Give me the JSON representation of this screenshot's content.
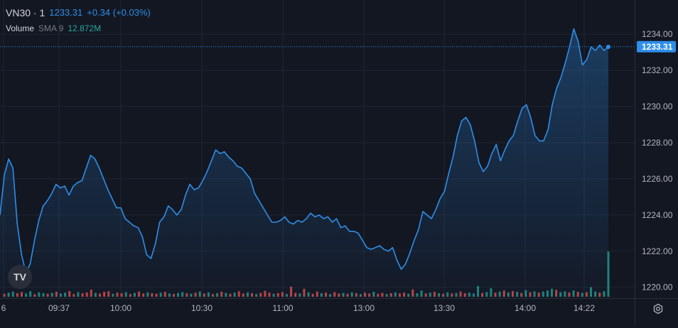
{
  "legend": {
    "symbol": "VN30 · 1",
    "last": "1233.31",
    "change": "+0.34 (+0.03%)",
    "volume_label": "Volume",
    "sma_label": "SMA 9",
    "volume_value": "12.872M"
  },
  "icons": {
    "logo": "tradingview-logo-icon",
    "settings": "gear-icon"
  },
  "logo_text": "TV",
  "colors": {
    "line": "#2e8ee8",
    "up": "#26a69a",
    "down": "#ef5350",
    "background": "#131722",
    "grid": "#1f2433"
  },
  "chart_data": {
    "type": "area",
    "price_label": "1233.31",
    "y_ticks": [
      "1234.00",
      "1232.00",
      "1230.00",
      "1228.00",
      "1226.00",
      "1224.00",
      "1222.00",
      "1220.00"
    ],
    "ylim": [
      1219.4,
      1235.5
    ],
    "x_tick_labels": [
      "6",
      "09:37",
      "10:00",
      "10:30",
      "11:00",
      "13:00",
      "13:30",
      "14:00",
      "14:22"
    ],
    "grid": true,
    "price_series": [
      1224.0,
      1226.2,
      1227.1,
      1226.6,
      1223.5,
      1221.8,
      1220.8,
      1221.3,
      1222.6,
      1223.7,
      1224.5,
      1224.8,
      1225.2,
      1225.7,
      1225.5,
      1225.6,
      1225.1,
      1225.6,
      1225.8,
      1225.9,
      1226.6,
      1227.3,
      1227.1,
      1226.6,
      1226.0,
      1225.4,
      1224.9,
      1224.4,
      1224.4,
      1223.8,
      1223.6,
      1223.4,
      1223.3,
      1222.8,
      1221.8,
      1221.6,
      1222.4,
      1223.6,
      1223.9,
      1224.5,
      1224.3,
      1224.0,
      1224.3,
      1225.1,
      1225.7,
      1225.4,
      1225.5,
      1225.9,
      1226.4,
      1227.0,
      1227.6,
      1227.4,
      1227.5,
      1227.2,
      1227.0,
      1226.7,
      1226.6,
      1226.3,
      1226.0,
      1225.2,
      1224.8,
      1224.4,
      1224.0,
      1223.6,
      1223.6,
      1223.7,
      1223.9,
      1223.6,
      1223.5,
      1223.7,
      1223.6,
      1223.8,
      1224.1,
      1223.9,
      1224.0,
      1223.8,
      1223.9,
      1223.6,
      1223.8,
      1223.3,
      1223.4,
      1223.1,
      1223.1,
      1223.0,
      1222.6,
      1222.2,
      1222.1,
      1222.2,
      1222.3,
      1222.1,
      1222.0,
      1222.2,
      1221.5,
      1221.0,
      1221.3,
      1221.9,
      1222.6,
      1223.2,
      1224.2,
      1224.0,
      1223.8,
      1224.3,
      1224.9,
      1225.3,
      1226.3,
      1227.2,
      1228.4,
      1229.2,
      1229.4,
      1229.0,
      1228.1,
      1226.9,
      1226.4,
      1226.7,
      1227.4,
      1227.9,
      1227.0,
      1227.6,
      1228.1,
      1228.4,
      1229.2,
      1229.9,
      1230.1,
      1229.4,
      1228.4,
      1228.1,
      1228.1,
      1228.7,
      1230.1,
      1231.0,
      1231.6,
      1232.4,
      1233.3,
      1234.3,
      1233.6,
      1232.3,
      1232.6,
      1233.3,
      1233.1,
      1233.4,
      1233.1,
      1233.3
    ],
    "volume_max": 7000000,
    "volume_series": [
      {
        "v": 1100000,
        "d": "down"
      },
      {
        "v": 1500000,
        "d": "up"
      },
      {
        "v": 1900000,
        "d": "up"
      },
      {
        "v": 1300000,
        "d": "down"
      },
      {
        "v": 1700000,
        "d": "down"
      },
      {
        "v": 1200000,
        "d": "up"
      },
      {
        "v": 2000000,
        "d": "up"
      },
      {
        "v": 900000,
        "d": "down"
      },
      {
        "v": 1600000,
        "d": "up"
      },
      {
        "v": 1300000,
        "d": "up"
      },
      {
        "v": 1100000,
        "d": "down"
      },
      {
        "v": 1400000,
        "d": "up"
      },
      {
        "v": 1800000,
        "d": "down"
      },
      {
        "v": 1200000,
        "d": "up"
      },
      {
        "v": 1500000,
        "d": "up"
      },
      {
        "v": 2100000,
        "d": "down"
      },
      {
        "v": 1000000,
        "d": "down"
      },
      {
        "v": 1700000,
        "d": "up"
      },
      {
        "v": 1300000,
        "d": "down"
      },
      {
        "v": 1600000,
        "d": "down"
      },
      {
        "v": 2600000,
        "d": "down"
      },
      {
        "v": 1400000,
        "d": "up"
      },
      {
        "v": 1200000,
        "d": "down"
      },
      {
        "v": 1800000,
        "d": "down"
      },
      {
        "v": 2000000,
        "d": "down"
      },
      {
        "v": 1100000,
        "d": "up"
      },
      {
        "v": 1500000,
        "d": "down"
      },
      {
        "v": 1300000,
        "d": "down"
      },
      {
        "v": 1700000,
        "d": "up"
      },
      {
        "v": 1000000,
        "d": "down"
      },
      {
        "v": 1400000,
        "d": "up"
      },
      {
        "v": 1900000,
        "d": "down"
      },
      {
        "v": 1200000,
        "d": "down"
      },
      {
        "v": 1600000,
        "d": "up"
      },
      {
        "v": 1300000,
        "d": "down"
      },
      {
        "v": 1100000,
        "d": "down"
      },
      {
        "v": 1500000,
        "d": "up"
      },
      {
        "v": 1800000,
        "d": "down"
      },
      {
        "v": 1200000,
        "d": "up"
      },
      {
        "v": 1000000,
        "d": "down"
      },
      {
        "v": 1400000,
        "d": "up"
      },
      {
        "v": 1700000,
        "d": "up"
      },
      {
        "v": 1300000,
        "d": "down"
      },
      {
        "v": 1100000,
        "d": "up"
      },
      {
        "v": 1500000,
        "d": "down"
      },
      {
        "v": 1900000,
        "d": "up"
      },
      {
        "v": 1200000,
        "d": "down"
      },
      {
        "v": 1600000,
        "d": "up"
      },
      {
        "v": 1000000,
        "d": "down"
      },
      {
        "v": 1300000,
        "d": "up"
      },
      {
        "v": 1800000,
        "d": "down"
      },
      {
        "v": 1400000,
        "d": "up"
      },
      {
        "v": 1100000,
        "d": "down"
      },
      {
        "v": 1500000,
        "d": "up"
      },
      {
        "v": 2000000,
        "d": "down"
      },
      {
        "v": 1200000,
        "d": "down"
      },
      {
        "v": 1600000,
        "d": "up"
      },
      {
        "v": 1300000,
        "d": "down"
      },
      {
        "v": 1000000,
        "d": "up"
      },
      {
        "v": 1400000,
        "d": "down"
      },
      {
        "v": 2200000,
        "d": "down"
      },
      {
        "v": 1500000,
        "d": "down"
      },
      {
        "v": 1100000,
        "d": "up"
      },
      {
        "v": 1300000,
        "d": "down"
      },
      {
        "v": 1700000,
        "d": "down"
      },
      {
        "v": 1000000,
        "d": "up"
      },
      {
        "v": 3700000,
        "d": "down"
      },
      {
        "v": 1400000,
        "d": "down"
      },
      {
        "v": 1200000,
        "d": "up"
      },
      {
        "v": 2900000,
        "d": "down"
      },
      {
        "v": 1600000,
        "d": "up"
      },
      {
        "v": 1100000,
        "d": "down"
      },
      {
        "v": 1900000,
        "d": "down"
      },
      {
        "v": 1300000,
        "d": "up"
      },
      {
        "v": 1500000,
        "d": "down"
      },
      {
        "v": 1000000,
        "d": "up"
      },
      {
        "v": 1700000,
        "d": "down"
      },
      {
        "v": 1200000,
        "d": "down"
      },
      {
        "v": 1400000,
        "d": "up"
      },
      {
        "v": 1100000,
        "d": "down"
      },
      {
        "v": 1600000,
        "d": "up"
      },
      {
        "v": 1300000,
        "d": "down"
      },
      {
        "v": 1000000,
        "d": "up"
      },
      {
        "v": 1500000,
        "d": "down"
      },
      {
        "v": 1200000,
        "d": "down"
      },
      {
        "v": 1800000,
        "d": "up"
      },
      {
        "v": 1100000,
        "d": "down"
      },
      {
        "v": 1400000,
        "d": "down"
      },
      {
        "v": 1000000,
        "d": "up"
      },
      {
        "v": 1300000,
        "d": "down"
      },
      {
        "v": 1600000,
        "d": "up"
      },
      {
        "v": 1200000,
        "d": "down"
      },
      {
        "v": 1500000,
        "d": "down"
      },
      {
        "v": 1100000,
        "d": "up"
      },
      {
        "v": 2700000,
        "d": "down"
      },
      {
        "v": 1300000,
        "d": "up"
      },
      {
        "v": 2300000,
        "d": "up"
      },
      {
        "v": 1200000,
        "d": "down"
      },
      {
        "v": 1500000,
        "d": "up"
      },
      {
        "v": 1800000,
        "d": "down"
      },
      {
        "v": 1300000,
        "d": "up"
      },
      {
        "v": 1100000,
        "d": "down"
      },
      {
        "v": 1600000,
        "d": "up"
      },
      {
        "v": 1200000,
        "d": "down"
      },
      {
        "v": 1400000,
        "d": "up"
      },
      {
        "v": 1900000,
        "d": "down"
      },
      {
        "v": 1300000,
        "d": "down"
      },
      {
        "v": 1500000,
        "d": "up"
      },
      {
        "v": 1200000,
        "d": "up"
      },
      {
        "v": 3900000,
        "d": "up"
      },
      {
        "v": 1400000,
        "d": "down"
      },
      {
        "v": 1700000,
        "d": "up"
      },
      {
        "v": 3100000,
        "d": "up"
      },
      {
        "v": 1500000,
        "d": "down"
      },
      {
        "v": 1900000,
        "d": "up"
      },
      {
        "v": 2300000,
        "d": "down"
      },
      {
        "v": 1600000,
        "d": "up"
      },
      {
        "v": 2100000,
        "d": "down"
      },
      {
        "v": 1800000,
        "d": "up"
      },
      {
        "v": 1400000,
        "d": "down"
      },
      {
        "v": 2400000,
        "d": "up"
      },
      {
        "v": 1700000,
        "d": "down"
      },
      {
        "v": 2000000,
        "d": "up"
      },
      {
        "v": 1500000,
        "d": "down"
      },
      {
        "v": 1900000,
        "d": "up"
      },
      {
        "v": 2300000,
        "d": "up"
      },
      {
        "v": 2900000,
        "d": "up"
      },
      {
        "v": 2500000,
        "d": "down"
      },
      {
        "v": 1700000,
        "d": "up"
      },
      {
        "v": 2000000,
        "d": "up"
      },
      {
        "v": 1600000,
        "d": "down"
      },
      {
        "v": 2300000,
        "d": "up"
      },
      {
        "v": 1800000,
        "d": "down"
      },
      {
        "v": 1400000,
        "d": "up"
      },
      {
        "v": 1700000,
        "d": "down"
      },
      {
        "v": 3500000,
        "d": "up"
      },
      {
        "v": 1900000,
        "d": "up"
      },
      {
        "v": 1500000,
        "d": "down"
      },
      {
        "v": 2000000,
        "d": "up"
      },
      {
        "v": 16500000,
        "d": "up"
      }
    ]
  }
}
